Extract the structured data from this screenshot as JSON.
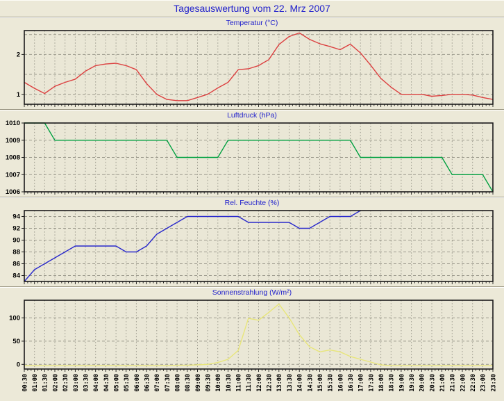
{
  "window": {
    "title": "Tagesauswertung vom 22. Mrz 2007",
    "title_color": "#2222cc"
  },
  "style_colors": {
    "page_background": "#ece9d8",
    "plot_background": "#eae7d6",
    "grid": "#9b998c",
    "frame": "#1a1a1a",
    "axis_text": "#000000"
  },
  "x_axis": {
    "shared_by_all_charts": true,
    "labels": [
      "00:30",
      "01:00",
      "01:30",
      "02:00",
      "02:30",
      "03:00",
      "03:30",
      "04:00",
      "04:30",
      "05:00",
      "05:30",
      "06:00",
      "06:30",
      "07:00",
      "07:30",
      "08:00",
      "08:30",
      "09:00",
      "09:30",
      "10:00",
      "10:30",
      "11:00",
      "11:30",
      "12:00",
      "12:30",
      "13:00",
      "13:30",
      "14:00",
      "14:30",
      "15:00",
      "15:30",
      "16:00",
      "16:30",
      "17:00",
      "17:30",
      "18:00",
      "18:30",
      "19:00",
      "19:30",
      "20:00",
      "20:30",
      "21:00",
      "21:30",
      "22:00",
      "22:30",
      "23:00",
      "23:30"
    ]
  },
  "chart_data": [
    {
      "type": "line",
      "title": "Temperatur (°C)",
      "line_color": "#dc4040",
      "ylim": [
        0.75,
        2.6
      ],
      "yticks": [
        1,
        2
      ],
      "gridlines": [
        1,
        1.5,
        2,
        2.5
      ],
      "grid": true,
      "legend": "none",
      "values": [
        1.3,
        1.15,
        1.02,
        1.2,
        1.3,
        1.38,
        1.58,
        1.72,
        1.76,
        1.78,
        1.72,
        1.62,
        1.27,
        1.0,
        0.87,
        0.84,
        0.84,
        0.92,
        1.0,
        1.16,
        1.3,
        1.62,
        1.64,
        1.72,
        1.87,
        2.25,
        2.45,
        2.54,
        2.38,
        2.27,
        2.2,
        2.12,
        2.26,
        2.04,
        1.73,
        1.4,
        1.18,
        1.0,
        1.0,
        1.0,
        0.95,
        0.97,
        1.0,
        1.0,
        0.98,
        0.92,
        0.87
      ]
    },
    {
      "type": "line",
      "title": "Luftdruck (hPa)",
      "line_color": "#00a040",
      "ylim": [
        1006,
        1010
      ],
      "yticks": [
        1006,
        1007,
        1008,
        1009,
        1010
      ],
      "gridlines": [
        1006,
        1007,
        1008,
        1009,
        1010
      ],
      "grid": true,
      "legend": "none",
      "values": [
        1010,
        1010,
        1010,
        1009,
        1009,
        1009,
        1009,
        1009,
        1009,
        1009,
        1009,
        1009,
        1009,
        1009,
        1009,
        1008,
        1008,
        1008,
        1008,
        1008,
        1009,
        1009,
        1009,
        1009,
        1009,
        1009,
        1009,
        1009,
        1009,
        1009,
        1009,
        1009,
        1009,
        1008,
        1008,
        1008,
        1008,
        1008,
        1008,
        1008,
        1008,
        1008,
        1007,
        1007,
        1007,
        1007,
        1006
      ]
    },
    {
      "type": "line",
      "title": "Rel. Feuchte (%)",
      "line_color": "#2929cc",
      "ylim": [
        83,
        95
      ],
      "yticks": [
        84,
        86,
        88,
        90,
        92,
        94
      ],
      "gridlines": [
        84,
        86,
        88,
        90,
        92,
        94
      ],
      "grid": true,
      "legend": "none",
      "values": [
        83,
        85,
        86,
        87,
        88,
        89,
        89,
        89,
        89,
        89,
        88,
        88,
        89,
        91,
        92,
        93,
        94,
        94,
        94,
        94,
        94,
        94,
        93,
        93,
        93,
        93,
        93,
        92,
        92,
        93,
        94,
        94,
        94,
        95,
        null,
        null,
        null,
        null,
        null,
        null,
        null,
        null,
        null,
        null,
        null,
        null,
        null
      ]
    },
    {
      "type": "line",
      "title": "Sonnenstrahlung (W/m²)",
      "line_color": "#e8e67a",
      "ylim": [
        -10,
        138
      ],
      "yticks": [
        0,
        50,
        100
      ],
      "gridlines": [
        0,
        50,
        100
      ],
      "grid": true,
      "legend": "none",
      "values": [
        -3,
        -3,
        -3,
        -3,
        -3,
        -3,
        -3,
        -3,
        -3,
        -3,
        -3,
        -3,
        -3,
        -3,
        -3,
        -2,
        -2,
        -1,
        0,
        4,
        11,
        30,
        99,
        95,
        112,
        130,
        100,
        64,
        38,
        27,
        31,
        27,
        17,
        11,
        5,
        -1,
        -3,
        -3,
        -3,
        -3,
        -3,
        -3,
        -3,
        -3,
        -3,
        -3,
        -3
      ]
    }
  ]
}
